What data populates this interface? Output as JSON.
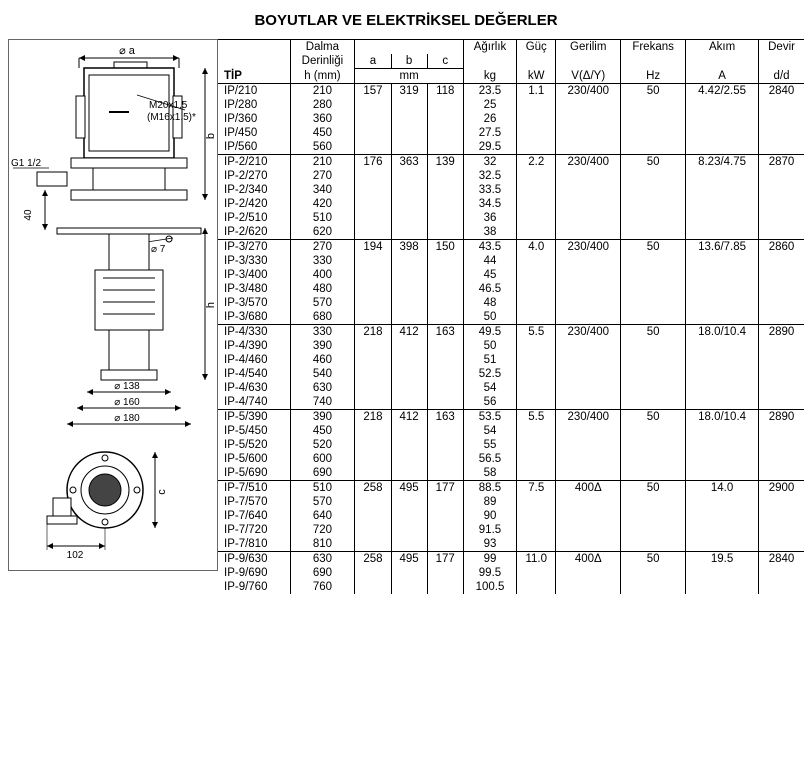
{
  "title": "BOYUTLAR VE ELEKTRİKSEL DEĞERLER",
  "diagram_labels": {
    "phi_a": "⌀ a",
    "m20": "M20x1,5",
    "m16": "(M16x1,5)*",
    "g112": "G1 1/2",
    "h40": "40",
    "phi7": "⌀ 7",
    "phi138": "⌀ 138",
    "phi160": "⌀ 160",
    "phi180": "⌀ 180",
    "d102": "102",
    "dim_b": "b",
    "dim_h": "h",
    "dim_c": "c"
  },
  "headers": {
    "tip": "TİP",
    "dalma1": "Dalma",
    "dalma2": "Derinliği",
    "dalma3": "h (mm)",
    "a": "a",
    "b": "b",
    "c": "c",
    "mm": "mm",
    "agirlik": "Ağırlık",
    "kg": "kg",
    "guc": "Güç",
    "kw": "kW",
    "gerilim": "Gerilim",
    "vdy": "V(Δ/Y)",
    "frekans": "Frekans",
    "hz": "Hz",
    "akim": "Akım",
    "amp": "A",
    "devir": "Devir",
    "dd": "d/d"
  },
  "groups": [
    {
      "a": "157",
      "b": "319",
      "c": "118",
      "kw": "1.1",
      "v": "230/400",
      "hz": "50",
      "amp": "4.42/2.55",
      "dd": "2840",
      "rows": [
        {
          "tip": "IP/210",
          "h": "210",
          "kg": "23.5"
        },
        {
          "tip": "IP/280",
          "h": "280",
          "kg": "25"
        },
        {
          "tip": "IP/360",
          "h": "360",
          "kg": "26"
        },
        {
          "tip": "IP/450",
          "h": "450",
          "kg": "27.5"
        },
        {
          "tip": "IP/560",
          "h": "560",
          "kg": "29.5"
        }
      ]
    },
    {
      "a": "176",
      "b": "363",
      "c": "139",
      "kw": "2.2",
      "v": "230/400",
      "hz": "50",
      "amp": "8.23/4.75",
      "dd": "2870",
      "rows": [
        {
          "tip": "IP-2/210",
          "h": "210",
          "kg": "32"
        },
        {
          "tip": "IP-2/270",
          "h": "270",
          "kg": "32.5"
        },
        {
          "tip": "IP-2/340",
          "h": "340",
          "kg": "33.5"
        },
        {
          "tip": "IP-2/420",
          "h": "420",
          "kg": "34.5"
        },
        {
          "tip": "IP-2/510",
          "h": "510",
          "kg": "36"
        },
        {
          "tip": "IP-2/620",
          "h": "620",
          "kg": "38"
        }
      ]
    },
    {
      "a": "194",
      "b": "398",
      "c": "150",
      "kw": "4.0",
      "v": "230/400",
      "hz": "50",
      "amp": "13.6/7.85",
      "dd": "2860",
      "rows": [
        {
          "tip": "IP-3/270",
          "h": "270",
          "kg": "43.5"
        },
        {
          "tip": "IP-3/330",
          "h": "330",
          "kg": "44"
        },
        {
          "tip": "IP-3/400",
          "h": "400",
          "kg": "45"
        },
        {
          "tip": "IP-3/480",
          "h": "480",
          "kg": "46.5"
        },
        {
          "tip": "IP-3/570",
          "h": "570",
          "kg": "48"
        },
        {
          "tip": "IP-3/680",
          "h": "680",
          "kg": "50"
        }
      ]
    },
    {
      "a": "218",
      "b": "412",
      "c": "163",
      "kw": "5.5",
      "v": "230/400",
      "hz": "50",
      "amp": "18.0/10.4",
      "dd": "2890",
      "rows": [
        {
          "tip": "IP-4/330",
          "h": "330",
          "kg": "49.5"
        },
        {
          "tip": "IP-4/390",
          "h": "390",
          "kg": "50"
        },
        {
          "tip": "IP-4/460",
          "h": "460",
          "kg": "51"
        },
        {
          "tip": "IP-4/540",
          "h": "540",
          "kg": "52.5"
        },
        {
          "tip": "IP-4/630",
          "h": "630",
          "kg": "54"
        },
        {
          "tip": "IP-4/740",
          "h": "740",
          "kg": "56"
        }
      ]
    },
    {
      "a": "218",
      "b": "412",
      "c": "163",
      "kw": "5.5",
      "v": "230/400",
      "hz": "50",
      "amp": "18.0/10.4",
      "dd": "2890",
      "rows": [
        {
          "tip": "IP-5/390",
          "h": "390",
          "kg": "53.5"
        },
        {
          "tip": "IP-5/450",
          "h": "450",
          "kg": "54"
        },
        {
          "tip": "IP-5/520",
          "h": "520",
          "kg": "55"
        },
        {
          "tip": "IP-5/600",
          "h": "600",
          "kg": "56.5"
        },
        {
          "tip": "IP-5/690",
          "h": "690",
          "kg": "58"
        }
      ]
    },
    {
      "a": "258",
      "b": "495",
      "c": "177",
      "kw": "7.5",
      "v": "400Δ",
      "hz": "50",
      "amp": "14.0",
      "dd": "2900",
      "rows": [
        {
          "tip": "IP-7/510",
          "h": "510",
          "kg": "88.5"
        },
        {
          "tip": "IP-7/570",
          "h": "570",
          "kg": "89"
        },
        {
          "tip": "IP-7/640",
          "h": "640",
          "kg": "90"
        },
        {
          "tip": "IP-7/720",
          "h": "720",
          "kg": "91.5"
        },
        {
          "tip": "IP-7/810",
          "h": "810",
          "kg": "93"
        }
      ]
    },
    {
      "a": "258",
      "b": "495",
      "c": "177",
      "kw": "11.0",
      "v": "400Δ",
      "hz": "50",
      "amp": "19.5",
      "dd": "2840",
      "rows": [
        {
          "tip": "IP-9/630",
          "h": "630",
          "kg": "99"
        },
        {
          "tip": "IP-9/690",
          "h": "690",
          "kg": "99.5"
        },
        {
          "tip": "IP-9/760",
          "h": "760",
          "kg": "100.5"
        }
      ]
    }
  ]
}
